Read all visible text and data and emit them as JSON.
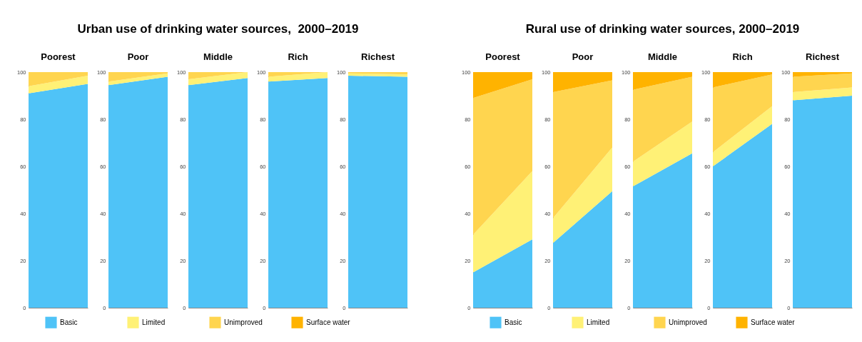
{
  "chart_data": [
    {
      "type": "area",
      "title": "Poorest",
      "annotations": [
        "Urban use of drinking water sources,  2000–2019"
      ],
      "categories": [
        null,
        null
      ],
      "stacked": true,
      "ylim": [
        0,
        100
      ],
      "yticks": [
        0,
        20,
        40,
        60,
        80,
        100
      ],
      "legend": "bottom",
      "series": [
        {
          "name": "Basic",
          "color": "#4fc3f7",
          "values": [
            91,
            95
          ]
        },
        {
          "name": "Limited",
          "color": "#fff176",
          "values": [
            3,
            3.5
          ]
        },
        {
          "name": "Unimproved",
          "color": "#ffd54f",
          "values": [
            6,
            1.5
          ]
        },
        {
          "name": "Surface water",
          "color": "#ffb300",
          "values": [
            null,
            null
          ]
        }
      ]
    },
    {
      "type": "area",
      "title": "Poor",
      "categories": [
        null,
        null
      ],
      "stacked": true,
      "ylim": [
        0,
        100
      ],
      "yticks": [
        0,
        20,
        40,
        60,
        80,
        100
      ],
      "series": [
        {
          "color": "#4fc3f7",
          "values": [
            94.5,
            98
          ]
        },
        {
          "color": "#fff176",
          "values": [
            1.5,
            1.5
          ]
        },
        {
          "color": "#ffd54f",
          "values": [
            4,
            0.5
          ]
        }
      ]
    },
    {
      "type": "area",
      "title": "Middle",
      "categories": [
        null,
        null
      ],
      "stacked": true,
      "ylim": [
        0,
        100
      ],
      "yticks": [
        0,
        20,
        40,
        60,
        80,
        100
      ],
      "series": [
        {
          "color": "#4fc3f7",
          "values": [
            94.5,
            97.5
          ]
        },
        {
          "color": "#fff176",
          "values": [
            2.5,
            2.5
          ]
        },
        {
          "color": "#ffd54f",
          "values": [
            3,
            0
          ]
        }
      ]
    },
    {
      "type": "area",
      "title": "Rich",
      "categories": [
        null,
        null
      ],
      "stacked": true,
      "ylim": [
        0,
        100
      ],
      "yticks": [
        0,
        20,
        40,
        60,
        80,
        100
      ],
      "series": [
        {
          "color": "#4fc3f7",
          "values": [
            96,
            97.5
          ]
        },
        {
          "color": "#fff176",
          "values": [
            2,
            2.5
          ]
        },
        {
          "color": "#ffd54f",
          "values": [
            2,
            0
          ]
        }
      ]
    },
    {
      "type": "area",
      "title": "Richest",
      "categories": [
        null,
        null
      ],
      "stacked": true,
      "ylim": [
        0,
        100
      ],
      "yticks": [
        0,
        20,
        40,
        60,
        80,
        100
      ],
      "series": [
        {
          "color": "#4fc3f7",
          "values": [
            98.5,
            98
          ]
        },
        {
          "color": "#fff176",
          "values": [
            1,
            1
          ]
        },
        {
          "color": "#ffd54f",
          "values": [
            0.5,
            1
          ]
        }
      ]
    },
    {
      "type": "area",
      "title": "Poorest",
      "annotations": [
        "Rural use of drinking water sources, 2000–2019"
      ],
      "categories": [
        null,
        null
      ],
      "stacked": true,
      "ylim": [
        0,
        100
      ],
      "yticks": [
        0,
        20,
        40,
        60,
        80,
        100
      ],
      "legend": "bottom",
      "series": [
        {
          "name": "Basic",
          "color": "#4fc3f7",
          "values": [
            15,
            29
          ]
        },
        {
          "name": "Limited",
          "color": "#fff176",
          "values": [
            16,
            29
          ]
        },
        {
          "name": "Unimproved",
          "color": "#ffd54f",
          "values": [
            58,
            39
          ]
        },
        {
          "name": "Surface water",
          "color": "#ffb300",
          "values": [
            11,
            3
          ]
        }
      ]
    },
    {
      "type": "area",
      "title": "Poor",
      "categories": [
        null,
        null
      ],
      "stacked": true,
      "ylim": [
        0,
        100
      ],
      "yticks": [
        0,
        20,
        40,
        60,
        80,
        100
      ],
      "series": [
        {
          "color": "#4fc3f7",
          "values": [
            27.5,
            49.5
          ]
        },
        {
          "color": "#fff176",
          "values": [
            10.5,
            18.5
          ]
        },
        {
          "color": "#ffd54f",
          "values": [
            53.5,
            28.5
          ]
        },
        {
          "color": "#ffb300",
          "values": [
            8.5,
            3.5
          ]
        }
      ]
    },
    {
      "type": "area",
      "title": "Middle",
      "categories": [
        null,
        null
      ],
      "stacked": true,
      "ylim": [
        0,
        100
      ],
      "yticks": [
        0,
        20,
        40,
        60,
        80,
        100
      ],
      "series": [
        {
          "color": "#4fc3f7",
          "values": [
            51.5,
            65.5
          ]
        },
        {
          "color": "#fff176",
          "values": [
            10.5,
            13.5
          ]
        },
        {
          "color": "#ffd54f",
          "values": [
            30.5,
            19
          ]
        },
        {
          "color": "#ffb300",
          "values": [
            7.5,
            2
          ]
        }
      ]
    },
    {
      "type": "area",
      "title": "Rich",
      "categories": [
        null,
        null
      ],
      "stacked": true,
      "ylim": [
        0,
        100
      ],
      "yticks": [
        0,
        20,
        40,
        60,
        80,
        100
      ],
      "series": [
        {
          "color": "#4fc3f7",
          "values": [
            60,
            78
          ]
        },
        {
          "color": "#fff176",
          "values": [
            6,
            7.5
          ]
        },
        {
          "color": "#ffd54f",
          "values": [
            27.5,
            13.5
          ]
        },
        {
          "color": "#ffb300",
          "values": [
            6.5,
            1
          ]
        }
      ]
    },
    {
      "type": "area",
      "title": "Richest",
      "categories": [
        null,
        null
      ],
      "stacked": true,
      "ylim": [
        0,
        100
      ],
      "yticks": [
        0,
        20,
        40,
        60,
        80,
        100
      ],
      "series": [
        {
          "color": "#4fc3f7",
          "values": [
            88,
            90
          ]
        },
        {
          "color": "#fff176",
          "values": [
            3.5,
            3.5
          ]
        },
        {
          "color": "#ffd54f",
          "values": [
            6.5,
            6
          ]
        },
        {
          "color": "#ffb300",
          "values": [
            2,
            0.5
          ]
        }
      ]
    }
  ]
}
